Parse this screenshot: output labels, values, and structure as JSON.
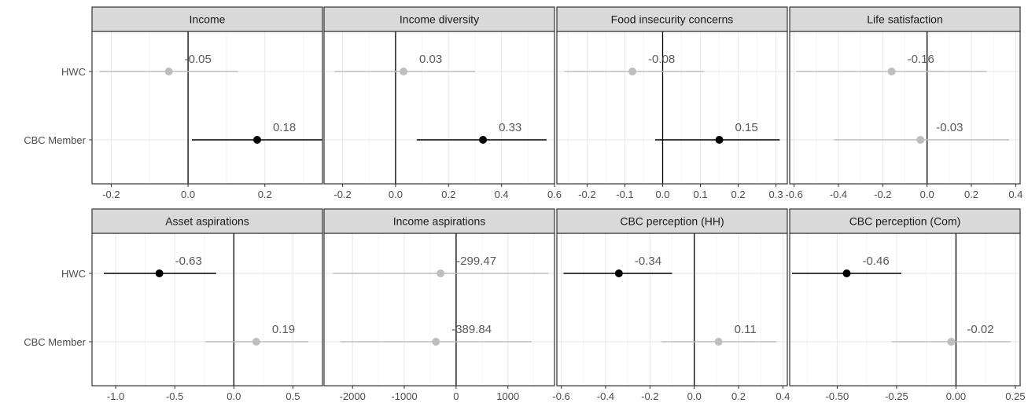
{
  "chart_data": [
    {
      "type": "scatter",
      "title": "Income",
      "categories": [
        "HWC",
        "CBC Member"
      ],
      "xlim": [
        -0.25,
        0.35
      ],
      "xticks": [
        -0.2,
        0.0,
        0.2
      ],
      "xtick_labels": [
        "-0.2",
        "0.0",
        "0.2"
      ],
      "points": [
        {
          "category": "HWC",
          "estimate": -0.05,
          "lower": -0.23,
          "upper": 0.13,
          "significant": false,
          "label": "-0.05"
        },
        {
          "category": "CBC Member",
          "estimate": 0.18,
          "lower": 0.01,
          "upper": 0.35,
          "significant": true,
          "label": "0.18"
        }
      ]
    },
    {
      "type": "scatter",
      "title": "Income diversity",
      "categories": [
        "HWC",
        "CBC Member"
      ],
      "xlim": [
        -0.27,
        0.6
      ],
      "xticks": [
        -0.2,
        0.0,
        0.2,
        0.4,
        0.6
      ],
      "xtick_labels": [
        "-0.2",
        "0.0",
        "0.2",
        "0.4",
        "0.6"
      ],
      "points": [
        {
          "category": "HWC",
          "estimate": 0.03,
          "lower": -0.23,
          "upper": 0.3,
          "significant": false,
          "label": "0.03"
        },
        {
          "category": "CBC Member",
          "estimate": 0.33,
          "lower": 0.08,
          "upper": 0.57,
          "significant": true,
          "label": "0.33"
        }
      ]
    },
    {
      "type": "scatter",
      "title": "Food insecurity concerns",
      "categories": [
        "HWC",
        "CBC Member"
      ],
      "xlim": [
        -0.28,
        0.33
      ],
      "xticks": [
        -0.2,
        -0.1,
        0.0,
        0.1,
        0.2,
        0.3
      ],
      "xtick_labels": [
        "-0.2",
        "-0.1",
        "0.0",
        "0.1",
        "0.2",
        "0.3"
      ],
      "points": [
        {
          "category": "HWC",
          "estimate": -0.08,
          "lower": -0.26,
          "upper": 0.11,
          "significant": false,
          "label": "-0.08"
        },
        {
          "category": "CBC Member",
          "estimate": 0.15,
          "lower": -0.02,
          "upper": 0.31,
          "significant": true,
          "label": "0.15"
        }
      ]
    },
    {
      "type": "scatter",
      "title": "Life satisfaction",
      "categories": [
        "HWC",
        "CBC Member"
      ],
      "xlim": [
        -0.62,
        0.42
      ],
      "xticks": [
        -0.6,
        -0.4,
        -0.2,
        0.0,
        0.2,
        0.4
      ],
      "xtick_labels": [
        "-0.6",
        "-0.4",
        "-0.2",
        "0.0",
        "0.2",
        "0.4"
      ],
      "points": [
        {
          "category": "HWC",
          "estimate": -0.16,
          "lower": -0.59,
          "upper": 0.27,
          "significant": false,
          "label": "-0.16"
        },
        {
          "category": "CBC Member",
          "estimate": -0.03,
          "lower": -0.42,
          "upper": 0.37,
          "significant": false,
          "label": "-0.03"
        }
      ]
    },
    {
      "type": "scatter",
      "title": "Asset aspirations",
      "categories": [
        "HWC",
        "CBC Member"
      ],
      "xlim": [
        -1.2,
        0.75
      ],
      "xticks": [
        -1.0,
        -0.5,
        0.0,
        0.5
      ],
      "xtick_labels": [
        "-1.0",
        "-0.5",
        "0.0",
        "0.5"
      ],
      "points": [
        {
          "category": "HWC",
          "estimate": -0.63,
          "lower": -1.1,
          "upper": -0.15,
          "significant": true,
          "label": "-0.63"
        },
        {
          "category": "CBC Member",
          "estimate": 0.19,
          "lower": -0.24,
          "upper": 0.63,
          "significant": false,
          "label": "0.19"
        }
      ]
    },
    {
      "type": "scatter",
      "title": "Income aspirations",
      "categories": [
        "HWC",
        "CBC Member"
      ],
      "xlim": [
        -2550,
        1900
      ],
      "xticks": [
        -2000,
        -1000,
        0,
        1000
      ],
      "xtick_labels": [
        "-2000",
        "-1000",
        "0",
        "1000"
      ],
      "points": [
        {
          "category": "HWC",
          "estimate": -299.47,
          "lower": -2380,
          "upper": 1780,
          "significant": false,
          "label": "-299.47"
        },
        {
          "category": "CBC Member",
          "estimate": -389.84,
          "lower": -2240,
          "upper": 1460,
          "significant": false,
          "label": "-389.84"
        }
      ]
    },
    {
      "type": "scatter",
      "title": "CBC perception (HH)",
      "categories": [
        "HWC",
        "CBC Member"
      ],
      "xlim": [
        -0.62,
        0.42
      ],
      "xticks": [
        -0.6,
        -0.4,
        -0.2,
        0.0,
        0.2,
        0.4
      ],
      "xtick_labels": [
        "-0.6",
        "-0.4",
        "-0.2",
        "0.0",
        "0.2",
        "0.4"
      ],
      "points": [
        {
          "category": "HWC",
          "estimate": -0.34,
          "lower": -0.59,
          "upper": -0.1,
          "significant": true,
          "label": "-0.34"
        },
        {
          "category": "CBC Member",
          "estimate": 0.11,
          "lower": -0.15,
          "upper": 0.37,
          "significant": false,
          "label": "0.11"
        }
      ]
    },
    {
      "type": "scatter",
      "title": "CBC perception (Com)",
      "categories": [
        "HWC",
        "CBC Member"
      ],
      "xlim": [
        -0.7,
        0.27
      ],
      "xticks": [
        -0.5,
        -0.25,
        0.0,
        0.25
      ],
      "xtick_labels": [
        "-0.50",
        "-0.25",
        "0.00",
        "0.25"
      ],
      "points": [
        {
          "category": "HWC",
          "estimate": -0.46,
          "lower": -0.69,
          "upper": -0.23,
          "significant": true,
          "label": "-0.46"
        },
        {
          "category": "CBC Member",
          "estimate": -0.02,
          "lower": -0.27,
          "upper": 0.23,
          "significant": false,
          "label": "-0.02"
        }
      ]
    }
  ],
  "colors": {
    "significant": "#000000",
    "nonsignificant": "#bebebe",
    "strip_fill": "#d9d9d9",
    "strip_border": "#333333",
    "grid_major": "#ebebeb",
    "grid_minor": "#f4f4f4",
    "label_text": "#595959",
    "axis_text": "#4d4d4d"
  }
}
